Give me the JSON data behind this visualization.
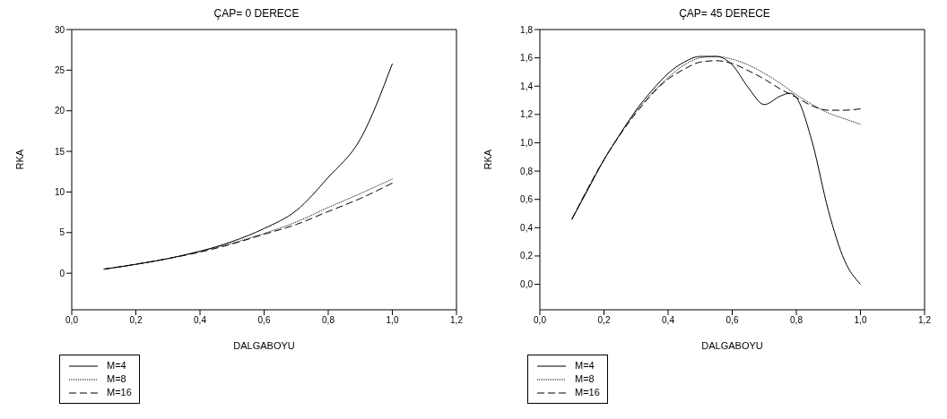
{
  "chart_data": [
    {
      "type": "line",
      "title": "ÇAP= 0 DERECE",
      "xlabel": "DALGABOYU",
      "ylabel": "RKA",
      "xlim": [
        0,
        1.2
      ],
      "ylim": [
        -4.5,
        30
      ],
      "xticks": [
        {
          "value": 0,
          "label": "0,0"
        },
        {
          "value": 0.2,
          "label": "0,2"
        },
        {
          "value": 0.4,
          "label": "0,4"
        },
        {
          "value": 0.6,
          "label": "0,6"
        },
        {
          "value": 0.8,
          "label": "0,8"
        },
        {
          "value": 1.0,
          "label": "1,0"
        },
        {
          "value": 1.2,
          "label": "1,2"
        }
      ],
      "yticks": [
        0,
        5,
        10,
        15,
        20,
        25,
        30
      ],
      "grid": false,
      "legend": "bottom left",
      "marker": "none",
      "series": [
        {
          "name": "M=4",
          "color": "#000000",
          "line_style": "solid",
          "x": [
            0.1,
            0.2,
            0.3,
            0.4,
            0.5,
            0.6,
            0.7,
            0.8,
            0.9,
            1.0
          ],
          "values": [
            0.5,
            1.1,
            1.8,
            2.7,
            3.9,
            5.5,
            7.7,
            11.8,
            16.5,
            25.8
          ]
        },
        {
          "name": "M=8",
          "color": "#000000",
          "line_style": "dotted",
          "x": [
            0.1,
            0.2,
            0.3,
            0.4,
            0.5,
            0.6,
            0.7,
            0.8,
            0.9,
            1.0
          ],
          "values": [
            0.5,
            1.1,
            1.8,
            2.7,
            3.7,
            4.9,
            6.3,
            8.1,
            9.8,
            11.6
          ]
        },
        {
          "name": "M=16",
          "color": "#000000",
          "line_style": "dashed",
          "x": [
            0.1,
            0.2,
            0.3,
            0.4,
            0.5,
            0.6,
            0.7,
            0.8,
            0.9,
            1.0
          ],
          "values": [
            0.5,
            1.1,
            1.8,
            2.6,
            3.6,
            4.8,
            6.0,
            7.6,
            9.2,
            11.1
          ]
        }
      ]
    },
    {
      "type": "line",
      "title": "ÇAP= 45 DERECE",
      "xlabel": "DALGABOYU",
      "ylabel": "RKA",
      "xlim": [
        0,
        1.2
      ],
      "ylim": [
        -0.18,
        1.8
      ],
      "xticks": [
        {
          "value": 0,
          "label": "0,0"
        },
        {
          "value": 0.2,
          "label": "0,2"
        },
        {
          "value": 0.4,
          "label": "0,4"
        },
        {
          "value": 0.6,
          "label": "0,6"
        },
        {
          "value": 0.8,
          "label": "0,8"
        },
        {
          "value": 1.0,
          "label": "1,0"
        },
        {
          "value": 1.2,
          "label": "1,2"
        }
      ],
      "yticks": [
        {
          "value": 0,
          "label": "0,0"
        },
        {
          "value": 0.2,
          "label": "0,2"
        },
        {
          "value": 0.4,
          "label": "0,4"
        },
        {
          "value": 0.6,
          "label": "0,6"
        },
        {
          "value": 0.8,
          "label": "0,8"
        },
        {
          "value": 1.0,
          "label": "1,0"
        },
        {
          "value": 1.2,
          "label": "1,2"
        },
        {
          "value": 1.4,
          "label": "1,4"
        },
        {
          "value": 1.6,
          "label": "1,6"
        },
        {
          "value": 1.8,
          "label": "1,8"
        }
      ],
      "grid": false,
      "legend": "bottom left",
      "marker": "none",
      "series": [
        {
          "name": "M=4",
          "color": "#000000",
          "line_style": "solid",
          "x": [
            0.1,
            0.15,
            0.2,
            0.25,
            0.3,
            0.35,
            0.4,
            0.45,
            0.5,
            0.55,
            0.6,
            0.65,
            0.7,
            0.75,
            0.78,
            0.8,
            0.85,
            0.9,
            0.95,
            1.0
          ],
          "values": [
            0.46,
            0.67,
            0.88,
            1.06,
            1.23,
            1.37,
            1.49,
            1.57,
            1.61,
            1.61,
            1.55,
            1.39,
            1.27,
            1.33,
            1.35,
            1.32,
            1.0,
            0.52,
            0.17,
            0.0
          ]
        },
        {
          "name": "M=8",
          "color": "#000000",
          "line_style": "dotted",
          "x": [
            0.1,
            0.2,
            0.3,
            0.4,
            0.45,
            0.5,
            0.55,
            0.6,
            0.65,
            0.7,
            0.75,
            0.8,
            0.85,
            0.9,
            0.95,
            1.0
          ],
          "values": [
            0.46,
            0.88,
            1.22,
            1.46,
            1.55,
            1.6,
            1.61,
            1.59,
            1.55,
            1.49,
            1.42,
            1.34,
            1.27,
            1.21,
            1.17,
            1.13
          ]
        },
        {
          "name": "M=16",
          "color": "#000000",
          "line_style": "dashed",
          "x": [
            0.1,
            0.2,
            0.3,
            0.4,
            0.45,
            0.5,
            0.55,
            0.6,
            0.65,
            0.7,
            0.75,
            0.8,
            0.85,
            0.9,
            0.95,
            1.0
          ],
          "values": [
            0.46,
            0.88,
            1.21,
            1.45,
            1.52,
            1.57,
            1.58,
            1.56,
            1.51,
            1.45,
            1.38,
            1.32,
            1.26,
            1.23,
            1.23,
            1.24
          ]
        }
      ]
    }
  ]
}
